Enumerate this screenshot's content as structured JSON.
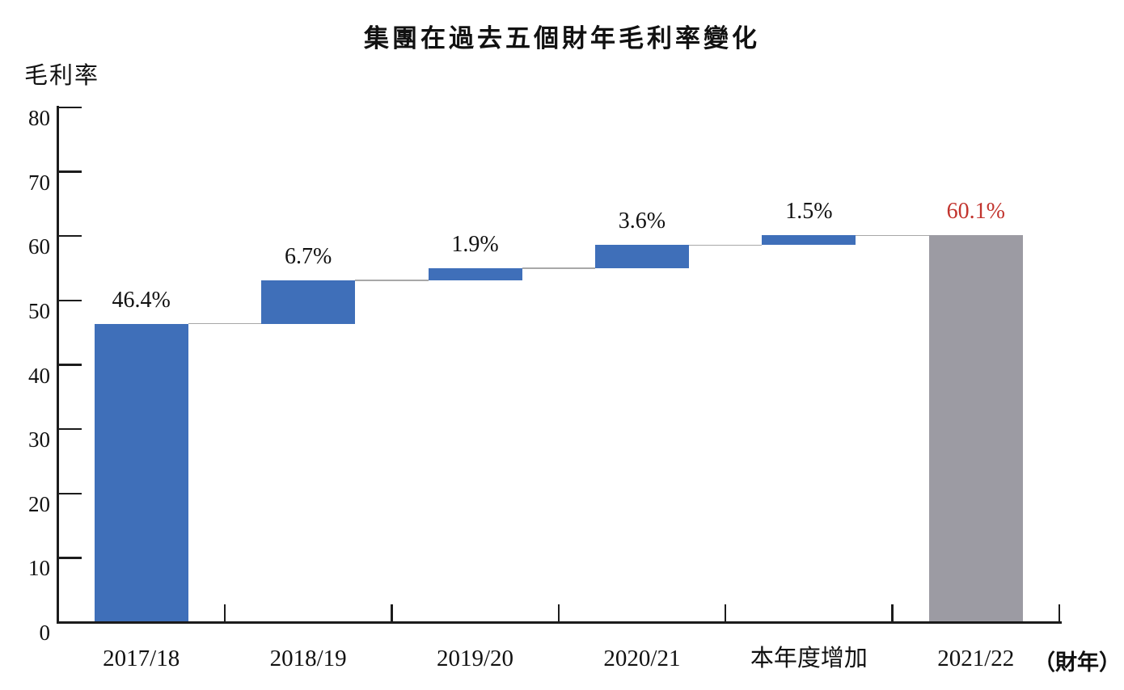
{
  "chart_data": {
    "type": "waterfall",
    "title": "集團在過去五個財年毛利率變化",
    "ylabel": "毛利率",
    "x_axis_suffix": "（財年）",
    "ylim": [
      0,
      80
    ],
    "ytick_step": 10,
    "yticks": [
      "0",
      "10",
      "20",
      "30",
      "40",
      "50",
      "60",
      "70",
      "80"
    ],
    "grid": "off",
    "legend": "none",
    "categories": [
      "2017/18",
      "2018/19",
      "2019/20",
      "2020/21",
      "本年度增加",
      "2021/22"
    ],
    "segments": [
      {
        "category": "2017/18",
        "label": "46.4%",
        "value": 46.4,
        "start": 0,
        "end": 46.4,
        "color": "blue"
      },
      {
        "category": "2018/19",
        "label": "6.7%",
        "value": 6.7,
        "start": 46.4,
        "end": 53.1,
        "color": "blue"
      },
      {
        "category": "2019/20",
        "label": "1.9%",
        "value": 1.9,
        "start": 53.1,
        "end": 55.0,
        "color": "blue"
      },
      {
        "category": "2020/21",
        "label": "3.6%",
        "value": 3.6,
        "start": 55.0,
        "end": 58.6,
        "color": "blue"
      },
      {
        "category": "本年度增加",
        "label": "1.5%",
        "value": 1.5,
        "start": 58.6,
        "end": 60.1,
        "color": "blue"
      },
      {
        "category": "2021/22",
        "label": "60.1%",
        "value": 60.1,
        "start": 0,
        "end": 60.1,
        "color": "gray",
        "label_color": "red"
      }
    ],
    "colors": {
      "bar_blue": "#3F6FB9",
      "bar_gray": "#9C9BA3",
      "label_red": "#C2342E",
      "axis": "#1c1c1c",
      "text": "#111111",
      "connector": "#A8A8A8"
    }
  }
}
